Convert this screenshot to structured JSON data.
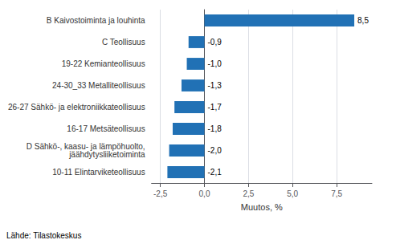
{
  "chart_data": {
    "type": "bar",
    "orientation": "horizontal",
    "categories": [
      "10-11 Elintarviketeollisuus",
      "D Sähkö-, kaasu- ja lämpöhuolto,\njäähdytysliiketoiminta",
      "16-17 Metsäteollisuus",
      "26-27 Sähkö- ja elektroniikkateollisuus",
      "24-30_33 Metalliteollisuus",
      "19-22 Kemianteollisuus",
      "C Teollisuus",
      "B Kaivostoiminta ja louhinta"
    ],
    "values": [
      -2.1,
      -2.0,
      -1.8,
      -1.7,
      -1.3,
      -1.0,
      -0.9,
      8.5
    ],
    "value_labels": [
      "-2,1",
      "-2,0",
      "-1,8",
      "-1,7",
      "-1,3",
      "-1,0",
      "-0,9",
      "8,5"
    ],
    "data_labels": true,
    "color": "#2171b5",
    "xlabel": "Muutos, %",
    "xlim": [
      -3.0,
      9.5
    ],
    "xticks": [
      {
        "value": -2.5,
        "label": "-2,5"
      },
      {
        "value": 0.0,
        "label": "0,0"
      },
      {
        "value": 2.5,
        "label": "2,5"
      },
      {
        "value": 5.0,
        "label": "5,0"
      },
      {
        "value": 7.5,
        "label": "7,5"
      }
    ],
    "grid": true,
    "annotations": [
      "Lähde: Tilastokeskus"
    ]
  }
}
